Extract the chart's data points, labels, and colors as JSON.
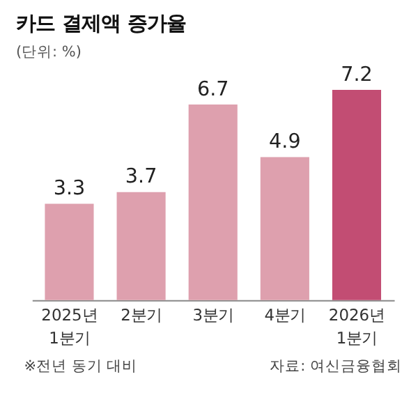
{
  "chart_data": {
    "type": "bar",
    "title": "카드 결제액 증가율",
    "subtitle": "(단위: %)",
    "categories": [
      "2025년\n1분기",
      "2분기",
      "3분기",
      "4분기",
      "2026년\n1분기"
    ],
    "values": [
      3.3,
      3.7,
      6.7,
      4.9,
      7.2
    ],
    "colors": [
      "#dea0ae",
      "#dea0ae",
      "#dea0ae",
      "#dea0ae",
      "#c24d73"
    ],
    "data_labels": true,
    "grid": false,
    "annotations": [
      "※전년 동기 대비",
      "자료: 여신금융협회"
    ]
  }
}
